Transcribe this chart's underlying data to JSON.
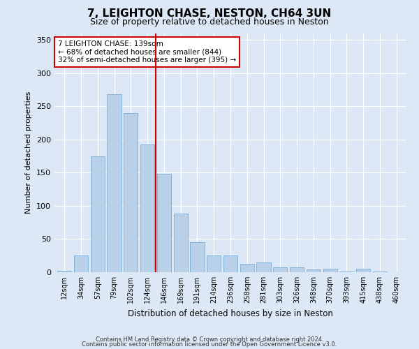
{
  "title": "7, LEIGHTON CHASE, NESTON, CH64 3UN",
  "subtitle": "Size of property relative to detached houses in Neston",
  "xlabel": "Distribution of detached houses by size in Neston",
  "ylabel": "Number of detached properties",
  "bar_color": "#b8d0e8",
  "bar_edge_color": "#7aadd4",
  "background_color": "#dce8f5",
  "grid_color": "#ffffff",
  "categories": [
    "12sqm",
    "34sqm",
    "57sqm",
    "79sqm",
    "102sqm",
    "124sqm",
    "146sqm",
    "169sqm",
    "191sqm",
    "214sqm",
    "236sqm",
    "258sqm",
    "281sqm",
    "303sqm",
    "326sqm",
    "348sqm",
    "370sqm",
    "393sqm",
    "415sqm",
    "438sqm",
    "460sqm"
  ],
  "values": [
    2,
    25,
    174,
    268,
    240,
    192,
    148,
    88,
    45,
    25,
    25,
    13,
    15,
    7,
    7,
    4,
    5,
    1,
    5,
    1,
    0
  ],
  "ylim": [
    0,
    360
  ],
  "yticks": [
    0,
    50,
    100,
    150,
    200,
    250,
    300,
    350
  ],
  "vline_x": 5.5,
  "vline_color": "#cc0000",
  "annotation_text": "7 LEIGHTON CHASE: 139sqm\n← 68% of detached houses are smaller (844)\n32% of semi-detached houses are larger (395) →",
  "annotation_box_color": "#ffffff",
  "annotation_box_edge": "#cc0000",
  "footnote1": "Contains HM Land Registry data © Crown copyright and database right 2024.",
  "footnote2": "Contains public sector information licensed under the Open Government Licence v3.0."
}
